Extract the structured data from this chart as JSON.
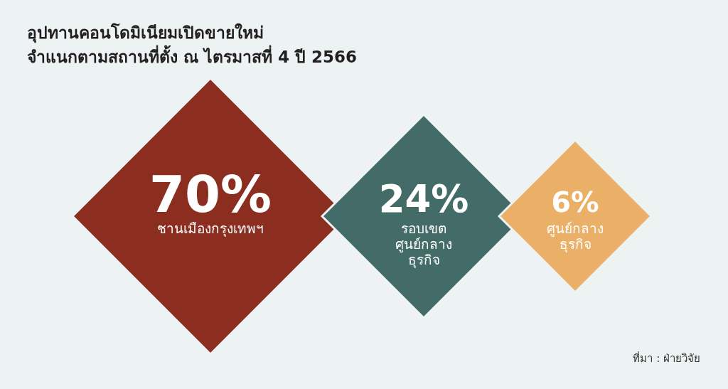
{
  "chart_data": {
    "type": "other",
    "title": "อุปทานคอนโดมิเนียมเปิดขายใหม่\nจำแนกตามสถานที่ตั้ง ณ ไตรมาสที่ 4 ปี 2566",
    "categories": [
      "ชานเมืองกรุงเทพฯ",
      "รอบเขต\nศูนย์กลาง\nธุรกิจ",
      "ศูนย์กลาง\nธุรกิจ"
    ],
    "values": [
      70,
      24,
      6
    ],
    "value_labels": [
      "70%",
      "24%",
      "6%"
    ],
    "colors": [
      "#8c2e1f",
      "#436b68",
      "#ebb068"
    ],
    "annotations": [
      "ที่มา : ฝ่ายวิจัย"
    ]
  }
}
